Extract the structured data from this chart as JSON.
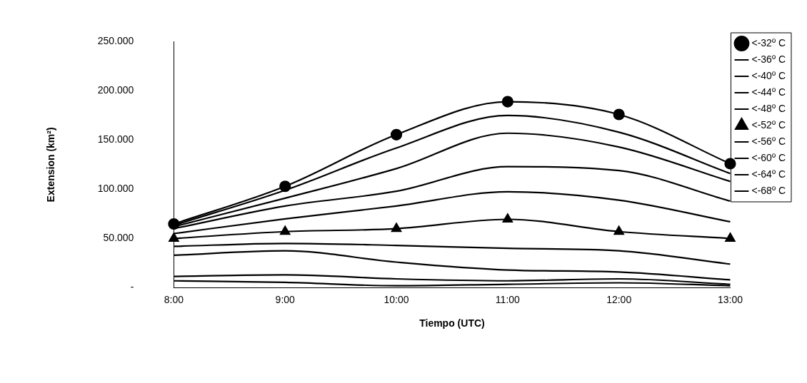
{
  "chart_data": {
    "type": "line",
    "xlabel": "Tiempo (UTC)",
    "ylabel": "Extension (km²)",
    "categories": [
      "8:00",
      "9:00",
      "10:00",
      "11:00",
      "12:00",
      "13:00"
    ],
    "ylim": [
      0,
      250000
    ],
    "yticks": [
      {
        "value": 0,
        "label": "-"
      },
      {
        "value": 50000,
        "label": "50.000"
      },
      {
        "value": 100000,
        "label": "100.000"
      },
      {
        "value": 150000,
        "label": "150.000"
      },
      {
        "value": 200000,
        "label": "200.000"
      },
      {
        "value": 250000,
        "label": "250.000"
      }
    ],
    "grid": false,
    "legend": "right",
    "line_style": "solid",
    "series": [
      {
        "name": "<-32º C",
        "color": "#000000",
        "marker": "circle",
        "values": [
          64800,
          103000,
          155500,
          189000,
          176000,
          126000
        ]
      },
      {
        "name": "<-36º C",
        "color": "#000000",
        "marker": "none",
        "values": [
          63400,
          99000,
          142000,
          175000,
          158000,
          116000
        ]
      },
      {
        "name": "<-40º C",
        "color": "#000000",
        "marker": "none",
        "values": [
          62000,
          91000,
          121000,
          157000,
          143000,
          108000
        ]
      },
      {
        "name": "<-44º C",
        "color": "#000000",
        "marker": "none",
        "values": [
          60000,
          83000,
          98000,
          123000,
          119000,
          88000
        ]
      },
      {
        "name": "<-48º C",
        "color": "#000000",
        "marker": "none",
        "values": [
          55000,
          70000,
          83000,
          97500,
          89000,
          67000
        ]
      },
      {
        "name": "<-52º C",
        "color": "#000000",
        "marker": "triangle",
        "values": [
          50000,
          57000,
          60000,
          69500,
          57000,
          50000
        ]
      },
      {
        "name": "<-56º C",
        "color": "#000000",
        "marker": "none",
        "values": [
          42000,
          45000,
          43000,
          40000,
          37500,
          24000
        ]
      },
      {
        "name": "<-60º C",
        "color": "#000000",
        "marker": "none",
        "values": [
          33000,
          37500,
          26000,
          18000,
          16000,
          8000
        ]
      },
      {
        "name": "<-64º C",
        "color": "#000000",
        "marker": "none",
        "values": [
          11500,
          13000,
          9000,
          7000,
          9000,
          3500
        ]
      },
      {
        "name": "<-68º C",
        "color": "#000000",
        "marker": "none",
        "values": [
          7000,
          5500,
          2000,
          3500,
          5000,
          2000
        ]
      }
    ]
  }
}
